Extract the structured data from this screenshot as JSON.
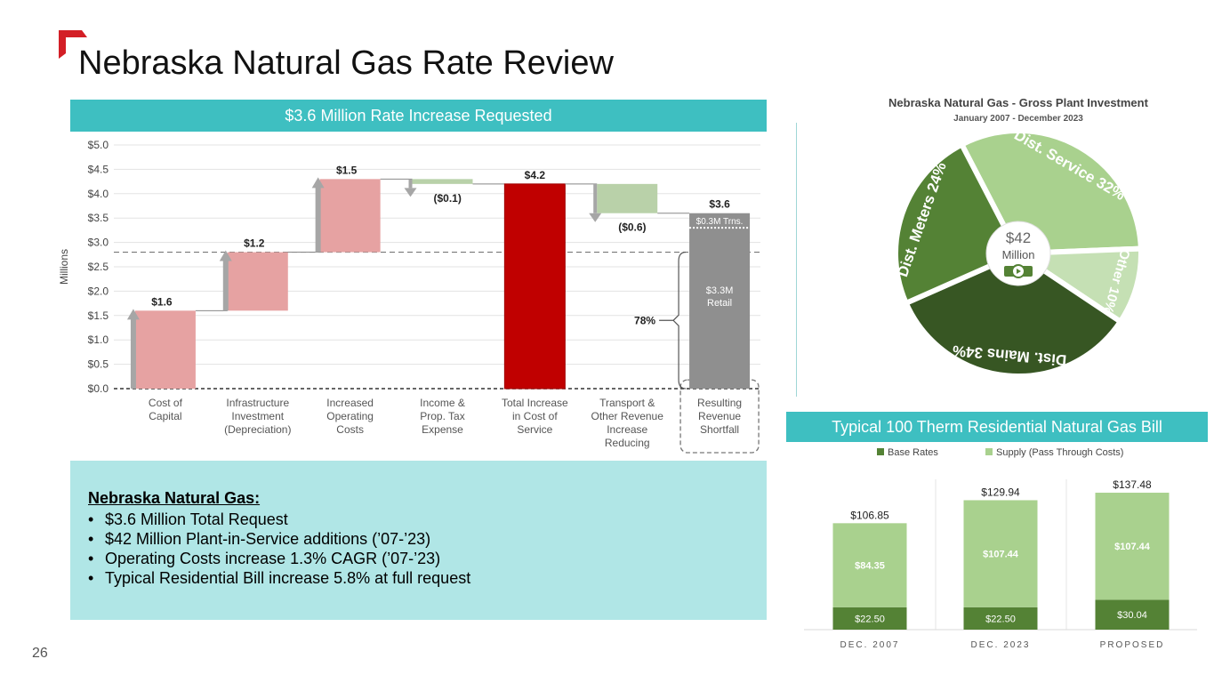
{
  "slide": {
    "title": "Nebraska Natural Gas Rate Review",
    "page_number": "26",
    "accent_color": "#d31f26"
  },
  "banner_top": "$3.6 Million Rate Increase Requested",
  "banner_bill": "Typical 100 Therm Residential Natural Gas Bill",
  "notes": {
    "heading": "Nebraska Natural Gas:",
    "items": [
      "$3.6 Million Total Request",
      "$42 Million Plant-in-Service additions (’07-’23)",
      "Operating Costs increase 1.3% CAGR (’07-’23)",
      "Typical Residential Bill increase 5.8% at full request"
    ]
  },
  "chart_data": [
    {
      "type": "bar",
      "subtype": "waterfall",
      "ylabel": "Millions",
      "ylim": [
        0,
        5.0
      ],
      "yticks": [
        "$0.0",
        "$0.5",
        "$1.0",
        "$1.5",
        "$2.0",
        "$2.5",
        "$3.0",
        "$3.5",
        "$4.0",
        "$4.5",
        "$5.0"
      ],
      "categories": [
        [
          "Cost of",
          "Capital"
        ],
        [
          "Infrastructure",
          "Investment",
          "(Depreciation)"
        ],
        [
          "Increased",
          "Operating",
          "Costs"
        ],
        [
          "Income &",
          "Prop. Tax",
          "Expense"
        ],
        [
          "Total Increase",
          "in Cost of",
          "Service"
        ],
        [
          "Transport &",
          "Other Revenue",
          "Increase",
          "Reducing"
        ],
        [
          "Resulting",
          "Revenue",
          "Shortfall"
        ]
      ],
      "steps": [
        {
          "label": "$1.6",
          "start": 0.0,
          "end": 1.6,
          "kind": "increase",
          "color": "#e6a2a2"
        },
        {
          "label": "$1.2",
          "start": 1.6,
          "end": 2.8,
          "kind": "increase",
          "color": "#e6a2a2"
        },
        {
          "label": "$1.5",
          "start": 2.8,
          "end": 4.3,
          "kind": "increase",
          "color": "#e6a2a2"
        },
        {
          "label": "($0.1)",
          "start": 4.3,
          "end": 4.2,
          "kind": "decrease",
          "color": "#b9d1a9"
        },
        {
          "label": "$4.2",
          "start": 0.0,
          "end": 4.2,
          "kind": "total",
          "color": "#c00000"
        },
        {
          "label": "($0.6)",
          "start": 4.2,
          "end": 3.6,
          "kind": "decrease",
          "color": "#b9d1a9"
        },
        {
          "label": "$3.6",
          "start": 0.0,
          "end": 3.6,
          "kind": "result",
          "color": "#8f8f8f"
        }
      ],
      "annotations": {
        "transport_label": "$0.3M  Trns.",
        "retail_label": [
          "$3.3M",
          "Retail"
        ],
        "retail_pct": "78%"
      }
    },
    {
      "type": "pie",
      "title": "Nebraska Natural Gas - Gross Plant Investment",
      "subtitle": "January 2007 - December 2023",
      "center_label": [
        "$42",
        "Million"
      ],
      "slices": [
        {
          "label": "Dist. Service 32%",
          "value": 32,
          "color": "#a9d18e"
        },
        {
          "label": "Other 10%",
          "value": 10,
          "color": "#c5e0b4"
        },
        {
          "label": "Dist. Mains 34%",
          "value": 34,
          "color": "#375623"
        },
        {
          "label": "Dist. Meters 24%",
          "value": 24,
          "color": "#548235"
        }
      ]
    },
    {
      "type": "bar",
      "subtype": "stacked",
      "categories": [
        "DEC. 2007",
        "DEC. 2023",
        "PROPOSED"
      ],
      "series": [
        {
          "name": "Base Rates",
          "values": [
            22.5,
            22.5,
            30.04
          ],
          "labels": [
            "$22.50",
            "$22.50",
            "$30.04"
          ],
          "color": "#548235"
        },
        {
          "name": "Supply (Pass Through Costs)",
          "values": [
            84.35,
            107.44,
            107.44
          ],
          "labels": [
            "$84.35",
            "$107.44",
            "$107.44"
          ],
          "color": "#a9d18e"
        }
      ],
      "totals": [
        "$106.85",
        "$129.94",
        "$137.48"
      ],
      "total_values": [
        106.85,
        129.94,
        137.48
      ],
      "ylim": [
        0,
        150
      ]
    }
  ]
}
